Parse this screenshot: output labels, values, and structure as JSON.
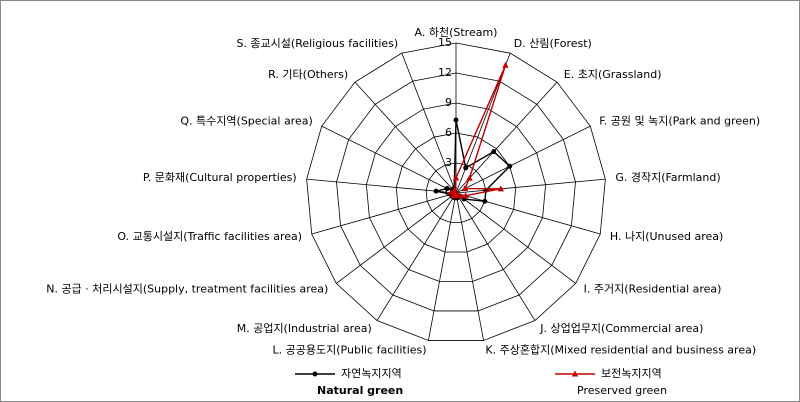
{
  "chart_data": {
    "type": "radar",
    "categories": [
      "A. 하천(Stream)",
      "D. 산림(Forest)",
      "E. 초지(Grassland)",
      "F. 공원 및 녹지(Park and green)",
      "G. 경작지(Farmland)",
      "H. 나지(Unused area)",
      "I. 주거지(Residential area)",
      "J. 상업업무지(Commercial area)",
      "K. 주상혼합지(Mixed residential and business area)",
      "L. 공공용도지(Public facilities)",
      "M. 공업지(Industrial area)",
      "N. 공급 · 처리시설지(Supply, treatment facilities area)",
      "O. 교통시설지(Traffic facilities area)",
      "P. 문화재(Cultural properties)",
      "Q. 특수지역(Special area)",
      "R. 기타(Others)",
      "S. 종교시설(Religious facilities)"
    ],
    "series": [
      {
        "name": "자연녹지지역",
        "label_en": "Natural green",
        "color": "#000000",
        "marker": "circle",
        "values": [
          7.3,
          2.7,
          5.6,
          6,
          3,
          3,
          1,
          0.5,
          0.5,
          0.5,
          0.5,
          0.5,
          0.5,
          2,
          1,
          0.5,
          0.5
        ]
      },
      {
        "name": "보전녹지지역",
        "label_en": "Preserved green",
        "color": "#c00000",
        "marker": "triangle",
        "values": [
          1.5,
          13.7,
          2,
          1,
          4.5,
          1,
          0.5,
          0.3,
          0.3,
          0.3,
          0.3,
          0.3,
          0.3,
          0.5,
          0.3,
          0.3,
          0.3
        ]
      }
    ],
    "rlim": [
      0,
      15
    ],
    "rticks": [
      0,
      3,
      6,
      9,
      12,
      15
    ],
    "grid": true
  }
}
